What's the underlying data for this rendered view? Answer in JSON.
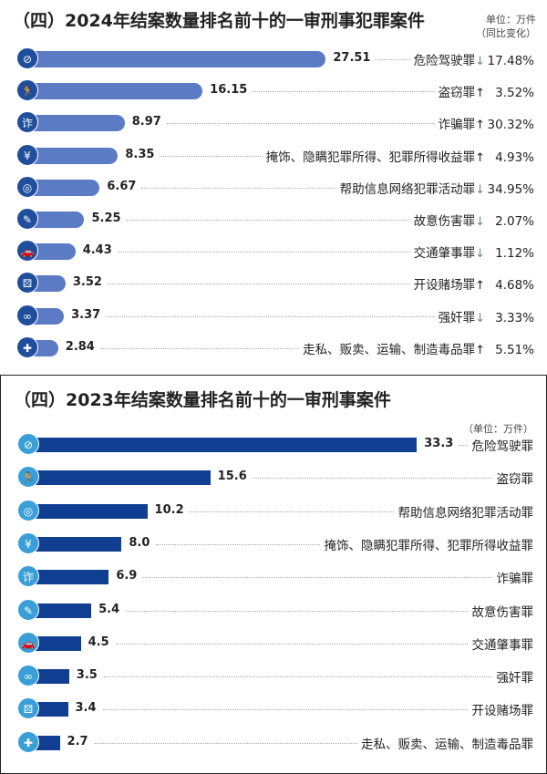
{
  "chart_data": [
    {
      "type": "bar",
      "orientation": "horizontal",
      "title": "（四）2024年结案数量排名前十的一审刑事犯罪案件",
      "unit": "单位：万件",
      "unit_note": "（同比变化）",
      "bar_color": "#5b7bc4",
      "icon_color": "#1f4e9c",
      "categories": [
        "危险驾驶罪",
        "盗窃罪",
        "诈骗罪",
        "掩饰、隐瞒犯罪所得、犯罪所得收益罪",
        "帮助信息网络犯罪活动罪",
        "故意伤害罪",
        "交通肇事罪",
        "开设赌场罪",
        "强奸罪",
        "走私、贩卖、运输、制造毒品罪"
      ],
      "values": [
        27.51,
        16.15,
        8.97,
        8.35,
        6.67,
        5.25,
        4.43,
        3.52,
        3.37,
        2.84
      ],
      "value_labels": [
        "27.51",
        "16.15",
        "8.97",
        "8.35",
        "6.67",
        "5.25",
        "4.43",
        "3.52",
        "3.37",
        "2.84"
      ],
      "change_direction": [
        "↓",
        "↑",
        "↑",
        "↑",
        "↓",
        "↓",
        "↓",
        "↑",
        "↓",
        "↑"
      ],
      "change": [
        "17.48%",
        "3.52%",
        "30.32%",
        "4.93%",
        "34.95%",
        "2.07%",
        "1.12%",
        "4.68%",
        "3.33%",
        "5.51%"
      ],
      "icons": [
        "no-driving-icon",
        "thief-icon",
        "fraud-icon",
        "money-bag-icon",
        "globe-icon",
        "knife-icon",
        "car-crash-icon",
        "dice-icon",
        "handcuffs-icon",
        "drugs-icon"
      ]
    },
    {
      "type": "bar",
      "orientation": "horizontal",
      "title": "（四）2023年结案数量排名前十的一审刑事案件",
      "unit": "（单位：万件）",
      "bar_color": "#103f91",
      "icon_color": "#3a9fd8",
      "categories": [
        "危险驾驶罪",
        "盗窃罪",
        "帮助信息网络犯罪活动罪",
        "掩饰、隐瞒犯罪所得、犯罪所得收益罪",
        "诈骗罪",
        "故意伤害罪",
        "交通肇事罪",
        "强奸罪",
        "开设赌场罪",
        "走私、贩卖、运输、制造毒品罪"
      ],
      "values": [
        33.3,
        15.6,
        10.2,
        8.0,
        6.9,
        5.4,
        4.5,
        3.5,
        3.4,
        2.7
      ],
      "value_labels": [
        "33.3",
        "15.6",
        "10.2",
        "8.0",
        "6.9",
        "5.4",
        "4.5",
        "3.5",
        "3.4",
        "2.7"
      ],
      "icons": [
        "no-driving-icon",
        "thief-icon",
        "globe-icon",
        "money-bag-icon",
        "fraud-icon",
        "knife-icon",
        "car-crash-icon",
        "handcuffs-icon",
        "dice-icon",
        "drugs-icon"
      ]
    }
  ]
}
